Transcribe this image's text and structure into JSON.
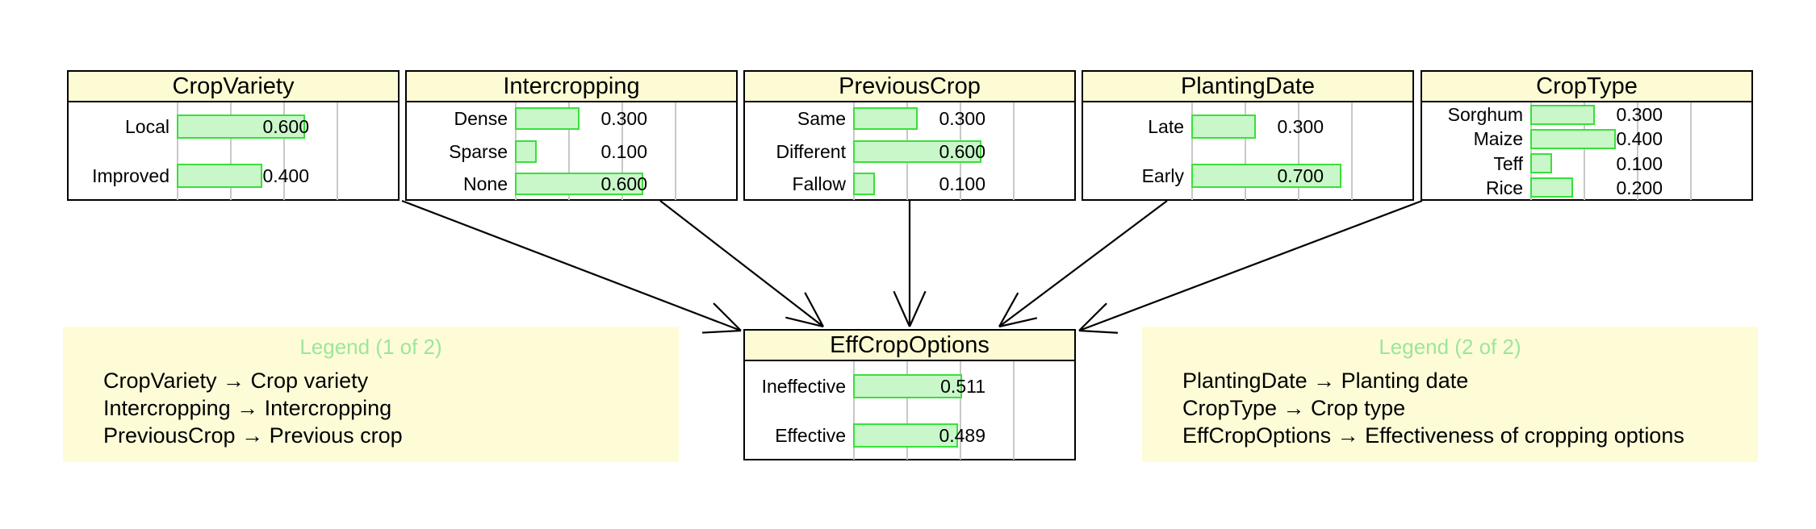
{
  "nodes": [
    {
      "id": "CropVariety",
      "title": "CropVariety",
      "states": [
        {
          "label": "Local",
          "value": 0.6,
          "value_text": "0.600"
        },
        {
          "label": "Improved",
          "value": 0.4,
          "value_text": "0.400"
        }
      ]
    },
    {
      "id": "Intercropping",
      "title": "Intercropping",
      "states": [
        {
          "label": "Dense",
          "value": 0.3,
          "value_text": "0.300"
        },
        {
          "label": "Sparse",
          "value": 0.1,
          "value_text": "0.100"
        },
        {
          "label": "None",
          "value": 0.6,
          "value_text": "0.600"
        }
      ]
    },
    {
      "id": "PreviousCrop",
      "title": "PreviousCrop",
      "states": [
        {
          "label": "Same",
          "value": 0.3,
          "value_text": "0.300"
        },
        {
          "label": "Different",
          "value": 0.6,
          "value_text": "0.600"
        },
        {
          "label": "Fallow",
          "value": 0.1,
          "value_text": "0.100"
        }
      ]
    },
    {
      "id": "PlantingDate",
      "title": "PlantingDate",
      "states": [
        {
          "label": "Late",
          "value": 0.3,
          "value_text": "0.300"
        },
        {
          "label": "Early",
          "value": 0.7,
          "value_text": "0.700"
        }
      ]
    },
    {
      "id": "CropType",
      "title": "CropType",
      "states": [
        {
          "label": "Sorghum",
          "value": 0.3,
          "value_text": "0.300"
        },
        {
          "label": "Maize",
          "value": 0.4,
          "value_text": "0.400"
        },
        {
          "label": "Teff",
          "value": 0.1,
          "value_text": "0.100"
        },
        {
          "label": "Rice",
          "value": 0.2,
          "value_text": "0.200"
        }
      ]
    },
    {
      "id": "EffCropOptions",
      "title": "EffCropOptions",
      "states": [
        {
          "label": "Ineffective",
          "value": 0.511,
          "value_text": "0.511"
        },
        {
          "label": "Effective",
          "value": 0.489,
          "value_text": "0.489"
        }
      ]
    }
  ],
  "edges": [
    {
      "from": "CropVariety",
      "to": "EffCropOptions"
    },
    {
      "from": "Intercropping",
      "to": "EffCropOptions"
    },
    {
      "from": "PreviousCrop",
      "to": "EffCropOptions"
    },
    {
      "from": "PlantingDate",
      "to": "EffCropOptions"
    },
    {
      "from": "CropType",
      "to": "EffCropOptions"
    }
  ],
  "legends": [
    {
      "title": "Legend (1 of 2)",
      "lines": [
        "CropVariety → Crop variety",
        "Intercropping → Intercropping",
        "PreviousCrop → Previous crop"
      ]
    },
    {
      "title": "Legend (2 of 2)",
      "lines": [
        "PlantingDate → Planting date",
        "CropType → Crop type",
        "EffCropOptions → Effectiveness of cropping options"
      ]
    }
  ],
  "colors": {
    "title_fill": "#fdfbd3",
    "legend_fill": "#fefcd7",
    "legend_title": "#9be69b",
    "bar_fill": "#c9f7c9",
    "bar_border": "#39e039",
    "grid": "#c8c8c8"
  }
}
